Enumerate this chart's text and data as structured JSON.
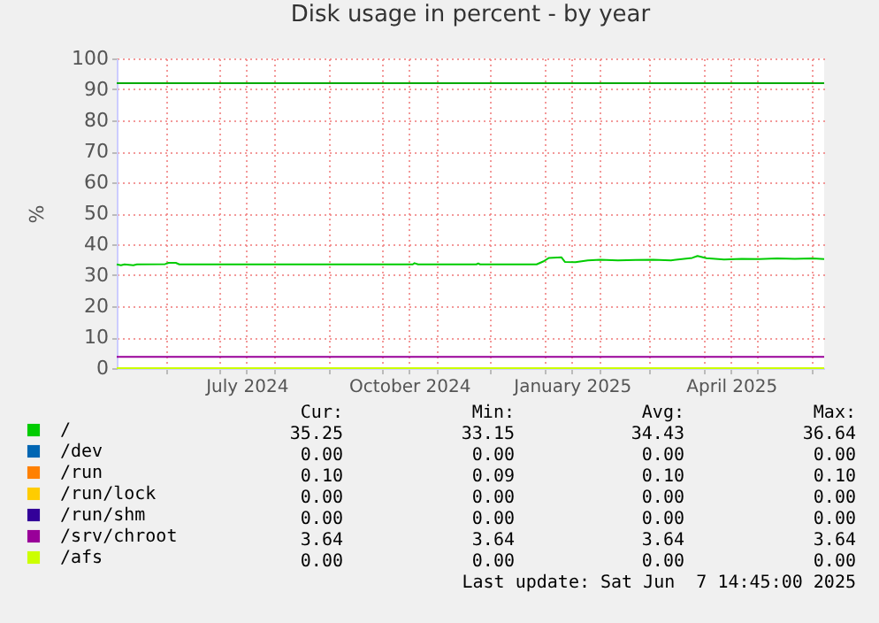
{
  "chart_data": {
    "type": "line",
    "title": "Disk usage in percent - by year",
    "ylabel": "%",
    "xlim": [
      "2024-05-03T14:45",
      "2025-06-07T14:45"
    ],
    "xticks": [
      {
        "value": "2024-06-01",
        "label": null
      },
      {
        "value": "2024-07-01",
        "label": null
      },
      {
        "value": "2024-07-16",
        "label": "July 2024"
      },
      {
        "value": "2024-08-01",
        "label": null
      },
      {
        "value": "2024-09-01",
        "label": null
      },
      {
        "value": "2024-10-01",
        "label": null
      },
      {
        "value": "2024-10-16",
        "label": "October 2024"
      },
      {
        "value": "2024-11-01",
        "label": null
      },
      {
        "value": "2024-12-01",
        "label": null
      },
      {
        "value": "2025-01-01",
        "label": null
      },
      {
        "value": "2025-01-16",
        "label": "January 2025"
      },
      {
        "value": "2025-02-01",
        "label": null
      },
      {
        "value": "2025-03-01",
        "label": null
      },
      {
        "value": "2025-04-01",
        "label": null
      },
      {
        "value": "2025-04-16",
        "label": "April 2025"
      },
      {
        "value": "2025-05-01",
        "label": null
      },
      {
        "value": "2025-06-01",
        "label": null
      }
    ],
    "ylim": [
      0,
      100
    ],
    "yticks": [
      0,
      10,
      20,
      30,
      40,
      50,
      60,
      70,
      80,
      90,
      100
    ],
    "grid": true,
    "legend": "bottom",
    "ref_lines": [
      {
        "axis": "y",
        "value": 92,
        "color": "#00aa00"
      }
    ],
    "series": [
      {
        "name": "/",
        "color": "#00cc00",
        "x": [
          "2024-05-03T14:45",
          "2024-05-06",
          "2024-05-08",
          "2024-05-13",
          "2024-05-15",
          "2024-05-31",
          "2024-06-02",
          "2024-06-06",
          "2024-06-08",
          "2024-10-18",
          "2024-10-19",
          "2024-10-21",
          "2024-11-23",
          "2024-11-24",
          "2024-11-25",
          "2024-12-27",
          "2024-12-31",
          "2025-01-03",
          "2025-01-10",
          "2025-01-12",
          "2025-01-18",
          "2025-01-25",
          "2025-02-01",
          "2025-02-11",
          "2025-02-21",
          "2025-03-03",
          "2025-03-13",
          "2025-03-25",
          "2025-03-28",
          "2025-04-02",
          "2025-04-12",
          "2025-04-22",
          "2025-05-02",
          "2025-05-12",
          "2025-05-22",
          "2025-06-01",
          "2025-06-07T14:45"
        ],
        "values": [
          33.5,
          33.2,
          33.5,
          33.2,
          33.5,
          33.6,
          34.0,
          34.0,
          33.5,
          33.5,
          33.9,
          33.5,
          33.5,
          33.8,
          33.5,
          33.5,
          34.5,
          35.6,
          35.8,
          34.3,
          34.2,
          34.8,
          35.0,
          34.8,
          34.9,
          35.0,
          34.8,
          35.6,
          36.2,
          35.5,
          35.1,
          35.3,
          35.2,
          35.4,
          35.3,
          35.4,
          35.25
        ]
      },
      {
        "name": "/dev",
        "color": "#0066b3",
        "values": [
          null
        ]
      },
      {
        "name": "/run",
        "color": "#ff8000",
        "values": [
          null
        ]
      },
      {
        "name": "/run/lock",
        "color": "#ffcc00",
        "values": [
          null
        ]
      },
      {
        "name": "/run/shm",
        "color": "#330099",
        "values": [
          null
        ]
      },
      {
        "name": "/srv/chroot",
        "color": "#990099",
        "x": [
          "2024-05-03T14:45",
          "2025-06-07T14:45"
        ],
        "values": [
          3.64,
          3.64
        ]
      },
      {
        "name": "/afs",
        "color": "#ccff00",
        "x": [
          "2024-05-03T14:45",
          "2025-06-07T14:45"
        ],
        "values": [
          0,
          0
        ]
      }
    ],
    "annotations": [
      "Cur:",
      "Min:",
      "Avg:",
      "Max:",
      "35.25",
      "33.15",
      "34.43",
      "36.64",
      "0.00",
      "0.00",
      "0.00",
      "0.00",
      "0.10",
      "0.09",
      "0.10",
      "0.10",
      "0.00",
      "0.00",
      "0.00",
      "0.00",
      "0.00",
      "0.00",
      "0.00",
      "0.00",
      "3.64",
      "3.64",
      "3.64",
      "3.64",
      "0.00",
      "0.00",
      "0.00",
      "0.00",
      "Last update: Sat Jun  7 14:45:00 2025"
    ]
  }
}
